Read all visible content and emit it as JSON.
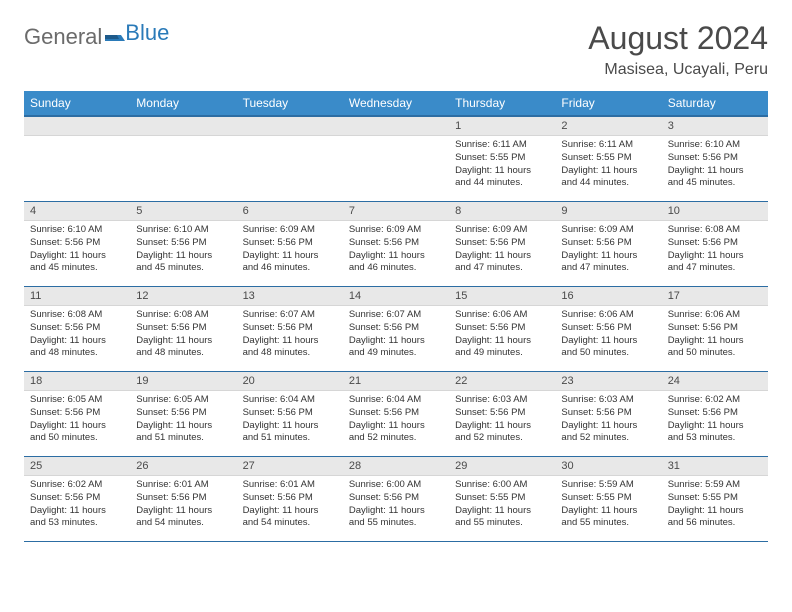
{
  "logo": {
    "text1": "General",
    "text2": "Blue",
    "color1": "#6b6b6b",
    "color2": "#2a7ab8",
    "icon_color": "#2a7ab8"
  },
  "title": "August 2024",
  "location": "Masisea, Ucayali, Peru",
  "colors": {
    "header_bg": "#3a8bc9",
    "header_border": "#2c6da3",
    "daynum_bg": "#e8e8e8",
    "text": "#333333"
  },
  "weekdays": [
    "Sunday",
    "Monday",
    "Tuesday",
    "Wednesday",
    "Thursday",
    "Friday",
    "Saturday"
  ],
  "weeks": [
    [
      null,
      null,
      null,
      null,
      {
        "n": "1",
        "sr": "6:11 AM",
        "ss": "5:55 PM",
        "dl": "11 hours and 44 minutes."
      },
      {
        "n": "2",
        "sr": "6:11 AM",
        "ss": "5:55 PM",
        "dl": "11 hours and 44 minutes."
      },
      {
        "n": "3",
        "sr": "6:10 AM",
        "ss": "5:56 PM",
        "dl": "11 hours and 45 minutes."
      }
    ],
    [
      {
        "n": "4",
        "sr": "6:10 AM",
        "ss": "5:56 PM",
        "dl": "11 hours and 45 minutes."
      },
      {
        "n": "5",
        "sr": "6:10 AM",
        "ss": "5:56 PM",
        "dl": "11 hours and 45 minutes."
      },
      {
        "n": "6",
        "sr": "6:09 AM",
        "ss": "5:56 PM",
        "dl": "11 hours and 46 minutes."
      },
      {
        "n": "7",
        "sr": "6:09 AM",
        "ss": "5:56 PM",
        "dl": "11 hours and 46 minutes."
      },
      {
        "n": "8",
        "sr": "6:09 AM",
        "ss": "5:56 PM",
        "dl": "11 hours and 47 minutes."
      },
      {
        "n": "9",
        "sr": "6:09 AM",
        "ss": "5:56 PM",
        "dl": "11 hours and 47 minutes."
      },
      {
        "n": "10",
        "sr": "6:08 AM",
        "ss": "5:56 PM",
        "dl": "11 hours and 47 minutes."
      }
    ],
    [
      {
        "n": "11",
        "sr": "6:08 AM",
        "ss": "5:56 PM",
        "dl": "11 hours and 48 minutes."
      },
      {
        "n": "12",
        "sr": "6:08 AM",
        "ss": "5:56 PM",
        "dl": "11 hours and 48 minutes."
      },
      {
        "n": "13",
        "sr": "6:07 AM",
        "ss": "5:56 PM",
        "dl": "11 hours and 48 minutes."
      },
      {
        "n": "14",
        "sr": "6:07 AM",
        "ss": "5:56 PM",
        "dl": "11 hours and 49 minutes."
      },
      {
        "n": "15",
        "sr": "6:06 AM",
        "ss": "5:56 PM",
        "dl": "11 hours and 49 minutes."
      },
      {
        "n": "16",
        "sr": "6:06 AM",
        "ss": "5:56 PM",
        "dl": "11 hours and 50 minutes."
      },
      {
        "n": "17",
        "sr": "6:06 AM",
        "ss": "5:56 PM",
        "dl": "11 hours and 50 minutes."
      }
    ],
    [
      {
        "n": "18",
        "sr": "6:05 AM",
        "ss": "5:56 PM",
        "dl": "11 hours and 50 minutes."
      },
      {
        "n": "19",
        "sr": "6:05 AM",
        "ss": "5:56 PM",
        "dl": "11 hours and 51 minutes."
      },
      {
        "n": "20",
        "sr": "6:04 AM",
        "ss": "5:56 PM",
        "dl": "11 hours and 51 minutes."
      },
      {
        "n": "21",
        "sr": "6:04 AM",
        "ss": "5:56 PM",
        "dl": "11 hours and 52 minutes."
      },
      {
        "n": "22",
        "sr": "6:03 AM",
        "ss": "5:56 PM",
        "dl": "11 hours and 52 minutes."
      },
      {
        "n": "23",
        "sr": "6:03 AM",
        "ss": "5:56 PM",
        "dl": "11 hours and 52 minutes."
      },
      {
        "n": "24",
        "sr": "6:02 AM",
        "ss": "5:56 PM",
        "dl": "11 hours and 53 minutes."
      }
    ],
    [
      {
        "n": "25",
        "sr": "6:02 AM",
        "ss": "5:56 PM",
        "dl": "11 hours and 53 minutes."
      },
      {
        "n": "26",
        "sr": "6:01 AM",
        "ss": "5:56 PM",
        "dl": "11 hours and 54 minutes."
      },
      {
        "n": "27",
        "sr": "6:01 AM",
        "ss": "5:56 PM",
        "dl": "11 hours and 54 minutes."
      },
      {
        "n": "28",
        "sr": "6:00 AM",
        "ss": "5:56 PM",
        "dl": "11 hours and 55 minutes."
      },
      {
        "n": "29",
        "sr": "6:00 AM",
        "ss": "5:55 PM",
        "dl": "11 hours and 55 minutes."
      },
      {
        "n": "30",
        "sr": "5:59 AM",
        "ss": "5:55 PM",
        "dl": "11 hours and 55 minutes."
      },
      {
        "n": "31",
        "sr": "5:59 AM",
        "ss": "5:55 PM",
        "dl": "11 hours and 56 minutes."
      }
    ]
  ],
  "labels": {
    "sunrise": "Sunrise:",
    "sunset": "Sunset:",
    "daylight": "Daylight:"
  }
}
